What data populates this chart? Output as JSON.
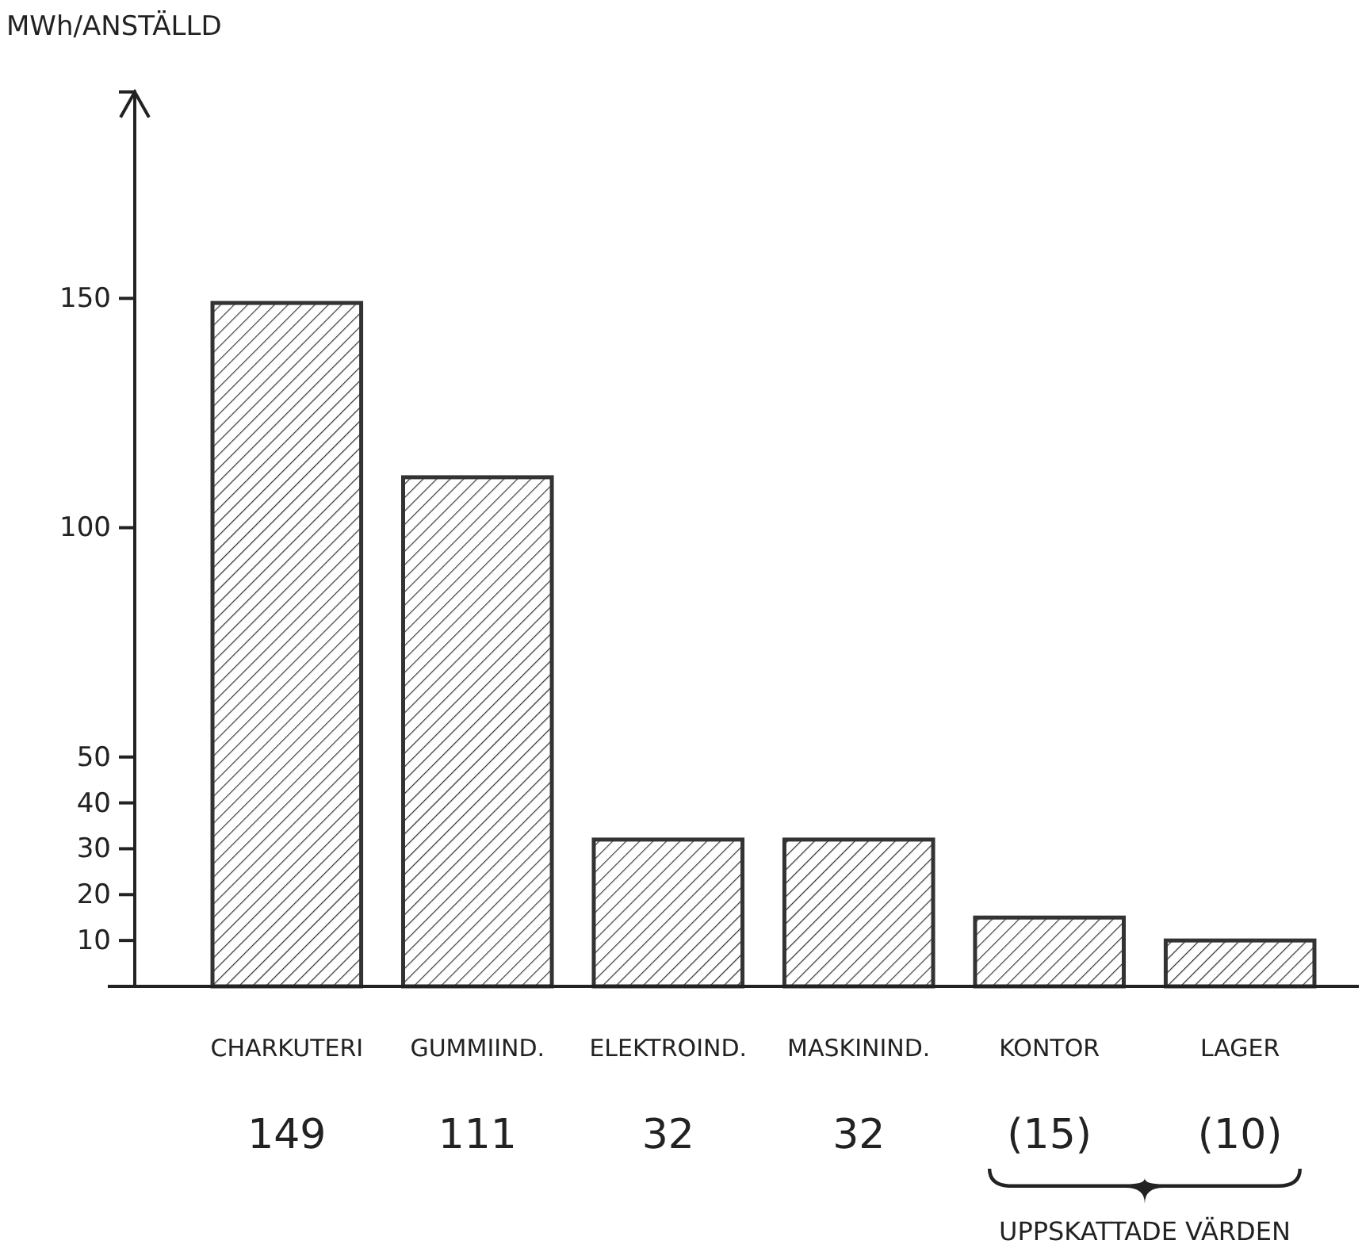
{
  "chart_data": {
    "type": "bar",
    "ylabel": "MWh/ANSTÄLLD",
    "categories": [
      "CHARKUTERI",
      "GUMMIIND.",
      "ELEKTROIND.",
      "MASKININD.",
      "KONTOR",
      "LAGER"
    ],
    "values": [
      149,
      111,
      32,
      32,
      15,
      10
    ],
    "value_labels": [
      "149",
      "111",
      "32",
      "32",
      "(15)",
      "(10)"
    ],
    "color": "#333333",
    "ylim": [
      0,
      195
    ],
    "yticks": [
      10,
      20,
      30,
      40,
      50,
      100,
      150
    ],
    "grid": false,
    "annotations": [
      "UPPSKATTADE VÄRDEN"
    ]
  }
}
